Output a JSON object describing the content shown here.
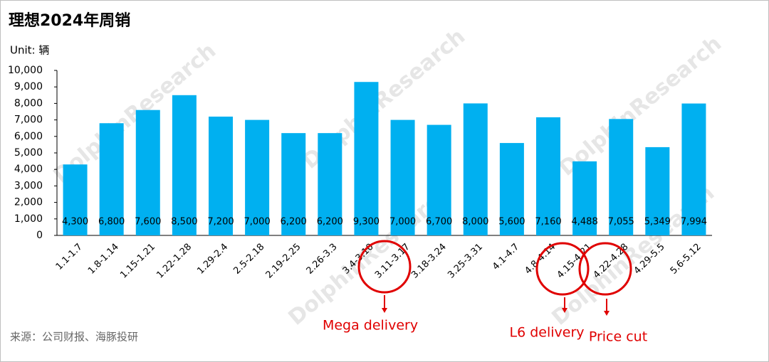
{
  "chart_data": {
    "type": "bar",
    "title": "理想2024年周销",
    "unit_label": "Unit: 辆",
    "source": "来源：公司财报、海豚投研",
    "watermark": "DolphinResearch",
    "categories": [
      "1.1-1.7",
      "1.8-1.14",
      "1.15-1.21",
      "1.22-1.28",
      "1.29-2.4",
      "2.5-2.18",
      "2.19-2.25",
      "2.26-3.3",
      "3.4-3.10",
      "3.11-3.17",
      "3.18-3.24",
      "3.25-3.31",
      "4.1-4.7",
      "4.8-4.14",
      "4.15-4.21",
      "4.22-4.28",
      "4.29-5.5",
      "5.6-5.12"
    ],
    "values": [
      4300,
      6800,
      7600,
      8500,
      7200,
      7000,
      6200,
      6200,
      9300,
      7000,
      6700,
      8000,
      5600,
      7160,
      4488,
      7055,
      5349,
      7994
    ],
    "value_labels": [
      "4,300",
      "6,800",
      "7,600",
      "8,500",
      "7,200",
      "7,000",
      "6,200",
      "6,200",
      "9,300",
      "7,000",
      "6,700",
      "8,000",
      "5,600",
      "7,160",
      "4,488",
      "7,055",
      "5,349",
      "7,994"
    ],
    "color": "#00b0f0",
    "ylim": [
      0,
      10000
    ],
    "yticks": [
      0,
      {
        "value": 1000,
        "label": "1,000"
      },
      {
        "value": 2000,
        "label": "2,000"
      },
      {
        "value": 3000,
        "label": "3,000"
      },
      {
        "value": 4000,
        "label": "4,000"
      },
      {
        "value": 5000,
        "label": "5,000"
      },
      {
        "value": 6000,
        "label": "6,000"
      },
      {
        "value": 7000,
        "label": "7,000"
      },
      {
        "value": 8000,
        "label": "8,000"
      },
      {
        "value": 9000,
        "label": "9,000"
      },
      {
        "value": 10000,
        "label": "10,000"
      }
    ],
    "annotations": [
      "Mega delivery",
      "L6 delivery",
      "Price cut"
    ]
  }
}
